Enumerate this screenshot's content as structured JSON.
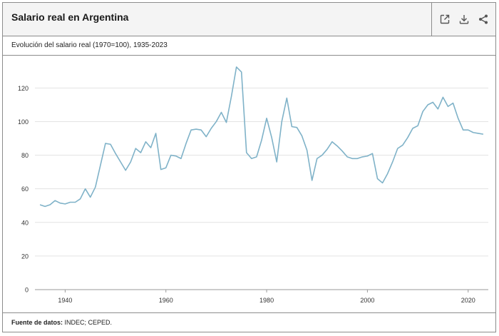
{
  "header": {
    "title": "Salario real en Argentina",
    "tools": [
      {
        "name": "open-external-icon"
      },
      {
        "name": "download-icon"
      },
      {
        "name": "share-icon"
      }
    ]
  },
  "subtitle": "Evolución del salario real (1970=100), 1935-2023",
  "footer": {
    "label": "Fuente de datos:",
    "value": "INDEC; CEPED."
  },
  "colors": {
    "line": "#7fb2c8",
    "grid": "#e3e3e3",
    "border": "#8c8c8c",
    "header_bg": "#f4f4f4"
  },
  "chart_data": {
    "type": "line",
    "title": "Salario real en Argentina",
    "subtitle": "Evolución del salario real (1970=100), 1935-2023",
    "xlabel": "",
    "ylabel": "",
    "xlim": [
      1934,
      2024
    ],
    "ylim": [
      0,
      135
    ],
    "x_ticks": [
      1940,
      1960,
      1980,
      2000,
      2020
    ],
    "y_ticks": [
      0,
      20,
      40,
      60,
      80,
      100,
      120
    ],
    "grid": "horizontal",
    "series": [
      {
        "x": [
          1935,
          1936,
          1937,
          1938,
          1939,
          1940,
          1941,
          1942,
          1943,
          1944,
          1945,
          1946,
          1947,
          1948,
          1949,
          1950,
          1951,
          1952,
          1953,
          1954,
          1955,
          1956,
          1957,
          1958,
          1959,
          1960,
          1961,
          1962,
          1963,
          1964,
          1965,
          1966,
          1967,
          1968,
          1969,
          1970,
          1971,
          1972,
          1973,
          1974,
          1975,
          1976,
          1977,
          1978,
          1979,
          1980,
          1981,
          1982,
          1983,
          1984,
          1985,
          1986,
          1987,
          1988,
          1989,
          1990,
          1991,
          1992,
          1993,
          1994,
          1995,
          1996,
          1997,
          1998,
          1999,
          2000,
          2001,
          2002,
          2003,
          2004,
          2005,
          2006,
          2007,
          2008,
          2009,
          2010,
          2011,
          2012,
          2013,
          2014,
          2015,
          2016,
          2017,
          2018,
          2019,
          2020,
          2021,
          2022,
          2023
        ],
        "values": [
          50.5,
          49.5,
          50.5,
          53,
          51.5,
          51,
          52,
          52,
          54,
          60,
          55,
          61,
          74,
          87,
          86.5,
          81,
          76,
          71,
          76,
          84,
          81.5,
          88,
          84.5,
          93,
          71.5,
          72.5,
          80,
          79.5,
          78,
          87,
          95,
          95.5,
          95,
          91,
          96,
          100,
          105.5,
          99.5,
          115,
          132.5,
          129.5,
          81.5,
          78,
          79,
          89,
          102,
          90.5,
          76,
          100,
          114,
          97,
          96.5,
          91.5,
          83,
          65,
          78,
          80,
          83.5,
          88,
          85.5,
          82.5,
          79,
          78,
          78,
          79,
          79.5,
          81,
          66,
          63.5,
          69,
          76,
          84,
          86,
          90.5,
          96,
          97.5,
          106,
          110,
          111.5,
          107.5,
          114.5,
          109,
          111,
          102,
          95,
          95,
          93.5,
          93,
          92.5
        ]
      }
    ]
  }
}
